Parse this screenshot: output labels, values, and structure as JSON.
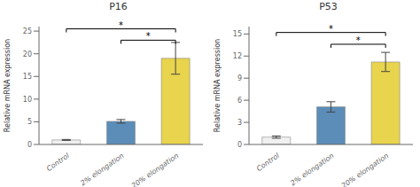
{
  "chart_data": [
    {
      "type": "bar",
      "title": "P16",
      "ylabel": "Relative mRNA expression",
      "categories": [
        "Control",
        "2% elongation",
        "20% elongation"
      ],
      "values": [
        1.0,
        5.1,
        19.0
      ],
      "errors": [
        0.1,
        0.4,
        3.5
      ],
      "colors": [
        "#f0f0f0",
        "#5b8db8",
        "#e8d44d"
      ],
      "ylim": [
        0,
        26
      ],
      "yticks": [
        0,
        5,
        10,
        15,
        20,
        25
      ],
      "annotations": [
        {
          "x1": "Control",
          "x2": "20% elongation",
          "y": 25.5,
          "label": "*"
        },
        {
          "x1": "2% elongation",
          "x2": "20% elongation",
          "y": 23.0,
          "label": "*"
        }
      ]
    },
    {
      "type": "bar",
      "title": "P53",
      "ylabel": "Relative mRNA expression",
      "categories": [
        "Control",
        "2% elongation",
        "20% elongation"
      ],
      "values": [
        1.0,
        5.1,
        11.2
      ],
      "errors": [
        0.15,
        0.7,
        1.3
      ],
      "colors": [
        "#f0f0f0",
        "#5b8db8",
        "#e8d44d"
      ],
      "ylim": [
        0,
        16
      ],
      "yticks": [
        0,
        3,
        6,
        9,
        12,
        15
      ],
      "annotations": [
        {
          "x1": "Control",
          "x2": "20% elongation",
          "y": 15.2,
          "label": "*"
        },
        {
          "x1": "2% elongation",
          "x2": "20% elongation",
          "y": 13.6,
          "label": "*"
        }
      ]
    }
  ]
}
